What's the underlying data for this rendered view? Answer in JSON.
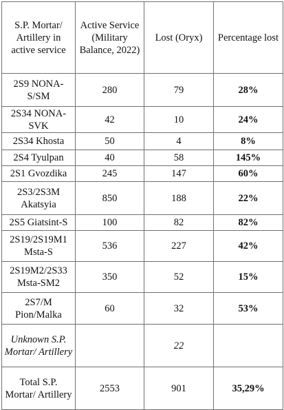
{
  "table": {
    "headers": [
      "S.P. Mortar/ Artillery in active service",
      "Active Service (Military Balance, 2022)",
      "Lost (Oryx)",
      "Percentage lost"
    ],
    "rows": [
      {
        "name": "2S9 NONA-S/SM",
        "active": "280",
        "lost": "79",
        "pct": "28%"
      },
      {
        "name": "2S34 NONA-SVK",
        "active": "42",
        "lost": "10",
        "pct": "24%"
      },
      {
        "name": "2S34 Khosta",
        "active": "50",
        "lost": "4",
        "pct": "8%"
      },
      {
        "name": "2S4 Tyulpan",
        "active": "40",
        "lost": "58",
        "pct": "145%"
      },
      {
        "name": "2S1 Gvozdika",
        "active": "245",
        "lost": "147",
        "pct": "60%"
      },
      {
        "name": "2S3/2S3M Akatsyia",
        "active": "850",
        "lost": "188",
        "pct": "22%"
      },
      {
        "name": "2S5 Giatsint-S",
        "active": "100",
        "lost": "82",
        "pct": "82%"
      },
      {
        "name": "2S19/2S19M1 Msta-S",
        "active": "536",
        "lost": "227",
        "pct": "42%"
      },
      {
        "name": "2S19M2/2S33 Msta-SM2",
        "active": "350",
        "lost": "52",
        "pct": "15%"
      },
      {
        "name": "2S7/M Pion/Malka",
        "active": "60",
        "lost": "32",
        "pct": "53%"
      },
      {
        "name": "Unknown S.P. Mortar/ Artillery",
        "active": "",
        "lost": "22",
        "pct": ""
      },
      {
        "name": "Total S.P. Mortar/ Artillery",
        "active": "2553",
        "lost": "901",
        "pct": "35,29%"
      }
    ]
  }
}
